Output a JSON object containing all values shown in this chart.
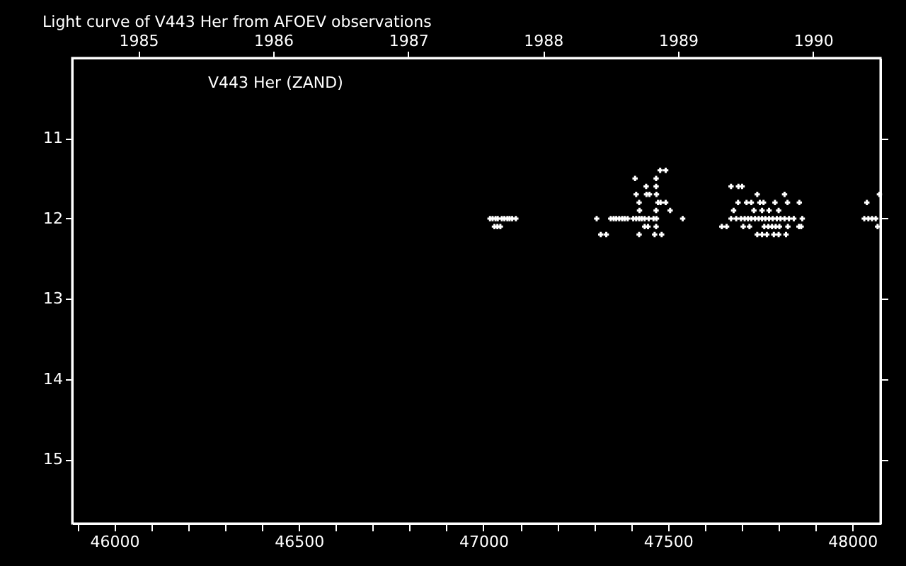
{
  "chart_data": {
    "type": "scatter",
    "title": "Light curve of V443 Her from AFOEV observations",
    "annotations": [
      "V443 Her (ZAND)"
    ],
    "xlim": [
      45886,
      48076
    ],
    "ylim": [
      15.8,
      10.0
    ],
    "xticks": [
      {
        "value": 45900,
        "label": null
      },
      {
        "value": 46000,
        "label": "46000"
      },
      {
        "value": 46100,
        "label": null
      },
      {
        "value": 46200,
        "label": null
      },
      {
        "value": 46300,
        "label": null
      },
      {
        "value": 46400,
        "label": null
      },
      {
        "value": 46500,
        "label": "46500"
      },
      {
        "value": 46600,
        "label": null
      },
      {
        "value": 46700,
        "label": null
      },
      {
        "value": 46800,
        "label": null
      },
      {
        "value": 46900,
        "label": null
      },
      {
        "value": 47000,
        "label": "47000"
      },
      {
        "value": 47100,
        "label": null
      },
      {
        "value": 47200,
        "label": null
      },
      {
        "value": 47300,
        "label": null
      },
      {
        "value": 47400,
        "label": null
      },
      {
        "value": 47500,
        "label": "47500"
      },
      {
        "value": 47600,
        "label": null
      },
      {
        "value": 47700,
        "label": null
      },
      {
        "value": 47800,
        "label": null
      },
      {
        "value": 47900,
        "label": null
      },
      {
        "value": 48000,
        "label": "48000"
      }
    ],
    "x2lim": [
      1984.51,
      1990.5
    ],
    "x2ticks": [
      1985,
      1986,
      1987,
      1988,
      1989,
      1990
    ],
    "yticks": [
      11,
      12,
      13,
      14,
      15
    ],
    "grid": false,
    "marker": "cross",
    "series": [
      {
        "color": "#ffffff",
        "x": [
          47018,
          47025,
          47033,
          47039,
          47050,
          47057,
          47065,
          47071,
          47078,
          47088,
          47030,
          47038,
          47046,
          47307,
          47345,
          47353,
          47360,
          47368,
          47376,
          47383,
          47391,
          47406,
          47414,
          47422,
          47429,
          47437,
          47448,
          47461,
          47469,
          47540,
          47318,
          47333,
          47422,
          47464,
          47483,
          47437,
          47446,
          47468,
          47423,
          47468,
          47506,
          47422,
          47473,
          47480,
          47494,
          47414,
          47442,
          47450,
          47469,
          47441,
          47468,
          47411,
          47468,
          47479,
          47494,
          47671,
          47685,
          47698,
          47708,
          47717,
          47726,
          47736,
          47746,
          47755,
          47764,
          47774,
          47784,
          47795,
          47805,
          47816,
          47828,
          47841,
          47864,
          47646,
          47659,
          47704,
          47721,
          47761,
          47772,
          47782,
          47792,
          47802,
          47825,
          47855,
          47861,
          47742,
          47755,
          47768,
          47787,
          47800,
          47820,
          47678,
          47733,
          47755,
          47774,
          47800,
          47690,
          47713,
          47726,
          47749,
          47759,
          47790,
          47824,
          47856,
          47742,
          47816,
          47671,
          47691,
          47701,
          48032,
          48043,
          48053,
          48063,
          48039,
          48073,
          48068
        ],
        "values": [
          12.0,
          12.0,
          12.0,
          12.0,
          12.0,
          12.0,
          12.0,
          12.0,
          12.0,
          12.0,
          12.1,
          12.1,
          12.1,
          12.0,
          12.0,
          12.0,
          12.0,
          12.0,
          12.0,
          12.0,
          12.0,
          12.0,
          12.0,
          12.0,
          12.0,
          12.0,
          12.0,
          12.0,
          12.0,
          12.0,
          12.2,
          12.2,
          12.2,
          12.2,
          12.2,
          12.1,
          12.1,
          12.1,
          11.9,
          11.9,
          11.9,
          11.8,
          11.8,
          11.8,
          11.8,
          11.7,
          11.7,
          11.7,
          11.7,
          11.6,
          11.6,
          11.5,
          11.5,
          11.4,
          11.4,
          12.0,
          12.0,
          12.0,
          12.0,
          12.0,
          12.0,
          12.0,
          12.0,
          12.0,
          12.0,
          12.0,
          12.0,
          12.0,
          12.0,
          12.0,
          12.0,
          12.0,
          12.0,
          12.1,
          12.1,
          12.1,
          12.1,
          12.1,
          12.1,
          12.1,
          12.1,
          12.1,
          12.1,
          12.1,
          12.1,
          12.2,
          12.2,
          12.2,
          12.2,
          12.2,
          12.2,
          11.9,
          11.9,
          11.9,
          11.9,
          11.9,
          11.8,
          11.8,
          11.8,
          11.8,
          11.8,
          11.8,
          11.8,
          11.8,
          11.7,
          11.7,
          11.6,
          11.6,
          11.6,
          12.0,
          12.0,
          12.0,
          12.0,
          11.8,
          11.7,
          12.1
        ]
      }
    ]
  }
}
